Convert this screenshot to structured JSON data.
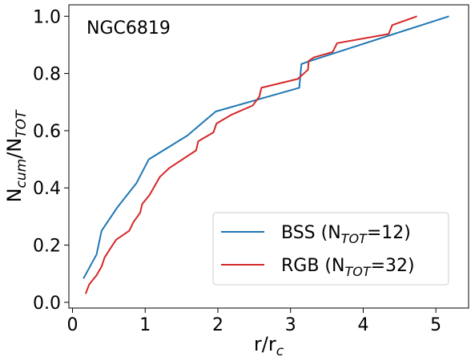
{
  "chart_data": {
    "type": "line",
    "annotation": "NGC6819",
    "xlabel": {
      "base": "r/r",
      "sub": "c"
    },
    "ylabel": {
      "base": "N",
      "sub1": "cum",
      "mid": "/N",
      "sub2": "TOT"
    },
    "xlim": [
      -0.05,
      5.45
    ],
    "ylim": [
      -0.02,
      1.04
    ],
    "xticks": [
      0,
      1,
      2,
      3,
      4,
      5
    ],
    "yticks": [
      0.0,
      0.2,
      0.4,
      0.6,
      0.8,
      1.0
    ],
    "grid": false,
    "legend_position": "bottom-right",
    "series": [
      {
        "id": "bss",
        "name": {
          "pre": "BSS (N",
          "sub": "TOT",
          "post": "=12)"
        },
        "color": "#1f77b4",
        "x": [
          0.15,
          0.33,
          0.4,
          0.62,
          0.88,
          1.05,
          1.58,
          1.97,
          3.12,
          3.15,
          3.25,
          5.18
        ],
        "y": [
          0.083,
          0.167,
          0.25,
          0.333,
          0.417,
          0.5,
          0.583,
          0.667,
          0.75,
          0.833,
          0.842,
          1.0
        ]
      },
      {
        "id": "rgb",
        "name": {
          "pre": "RGB (N",
          "sub": "TOT",
          "post": "=32)"
        },
        "color": "#d62728",
        "x": [
          0.18,
          0.23,
          0.33,
          0.4,
          0.44,
          0.52,
          0.6,
          0.78,
          0.84,
          0.93,
          0.96,
          1.06,
          1.2,
          1.33,
          1.7,
          1.73,
          1.94,
          1.98,
          2.19,
          2.48,
          2.57,
          2.6,
          3.1,
          3.24,
          3.25,
          3.32,
          3.58,
          3.64,
          4.35,
          4.4,
          4.74
        ],
        "y": [
          0.03,
          0.063,
          0.094,
          0.125,
          0.156,
          0.188,
          0.219,
          0.25,
          0.281,
          0.313,
          0.344,
          0.375,
          0.438,
          0.469,
          0.531,
          0.563,
          0.594,
          0.625,
          0.656,
          0.688,
          0.719,
          0.75,
          0.781,
          0.813,
          0.844,
          0.856,
          0.875,
          0.906,
          0.938,
          0.969,
          1.0
        ]
      }
    ]
  }
}
